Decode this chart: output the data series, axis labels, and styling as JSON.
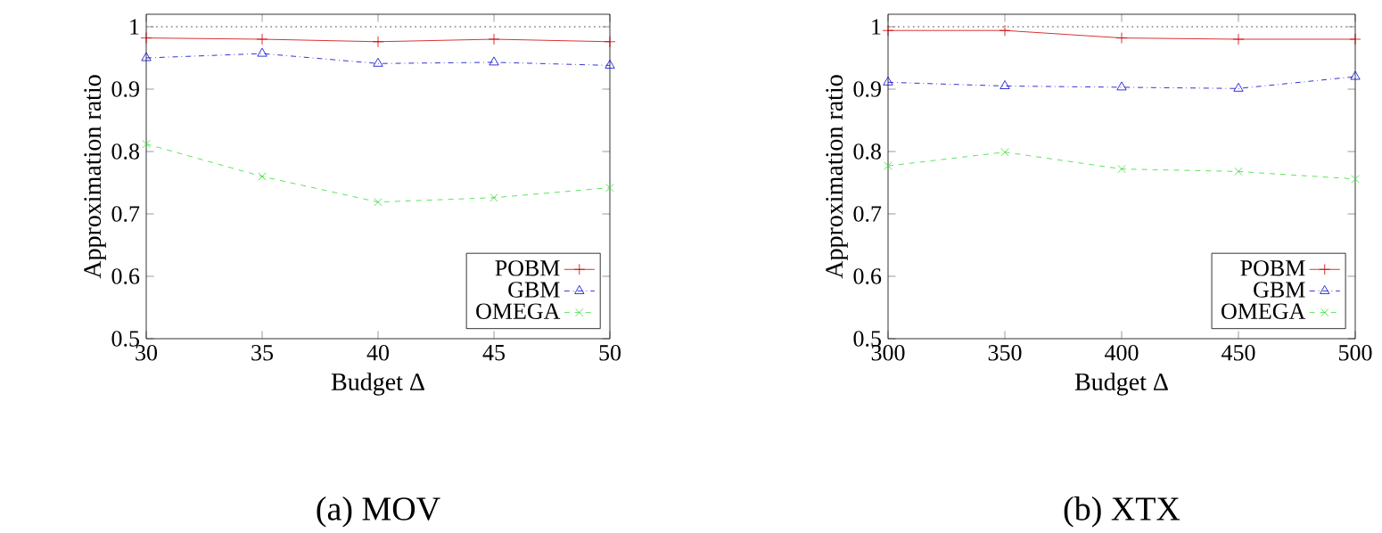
{
  "chart_data": [
    {
      "type": "line",
      "title": "(a) MOV",
      "xlabel": "Budget Δ",
      "ylabel": "Approximation ratio",
      "x": [
        30,
        35,
        40,
        45,
        50
      ],
      "xlim": [
        30,
        50
      ],
      "xticks": [
        30,
        35,
        40,
        45,
        50
      ],
      "ylim": [
        0.5,
        1.02
      ],
      "yticks": [
        0.5,
        0.6,
        0.7,
        0.8,
        0.9,
        1
      ],
      "legend": "bottom right",
      "ref_lines": [
        {
          "axis": "y",
          "value": 1,
          "color": "#808080",
          "line_style": "dotted"
        }
      ],
      "series": [
        {
          "name": "POBM",
          "color": "#cc0000",
          "marker": "plus",
          "line_style": "solid",
          "values": [
            0.982,
            0.98,
            0.976,
            0.98,
            0.976
          ]
        },
        {
          "name": "GBM",
          "color": "#0000cc",
          "marker": "triangle",
          "line_style": "dashdot",
          "values": [
            0.95,
            0.957,
            0.941,
            0.943,
            0.938
          ]
        },
        {
          "name": "OMEGA",
          "color": "#33dd33",
          "marker": "cross",
          "line_style": "dashed",
          "values": [
            0.812,
            0.76,
            0.719,
            0.726,
            0.742
          ]
        }
      ]
    },
    {
      "type": "line",
      "title": "(b) XTX",
      "xlabel": "Budget Δ",
      "ylabel": "Approximation ratio",
      "x": [
        300,
        350,
        400,
        450,
        500
      ],
      "xlim": [
        300,
        500
      ],
      "xticks": [
        300,
        350,
        400,
        450,
        500
      ],
      "ylim": [
        0.5,
        1.02
      ],
      "yticks": [
        0.5,
        0.6,
        0.7,
        0.8,
        0.9,
        1
      ],
      "legend": "bottom right",
      "ref_lines": [
        {
          "axis": "y",
          "value": 1,
          "color": "#808080",
          "line_style": "dotted"
        }
      ],
      "series": [
        {
          "name": "POBM",
          "color": "#cc0000",
          "marker": "plus",
          "line_style": "solid",
          "values": [
            0.994,
            0.994,
            0.982,
            0.98,
            0.98
          ]
        },
        {
          "name": "GBM",
          "color": "#0000cc",
          "marker": "triangle",
          "line_style": "dashdot",
          "values": [
            0.911,
            0.905,
            0.903,
            0.901,
            0.92
          ]
        },
        {
          "name": "OMEGA",
          "color": "#33dd33",
          "marker": "cross",
          "line_style": "dashed",
          "values": [
            0.777,
            0.799,
            0.772,
            0.768,
            0.756
          ]
        }
      ]
    }
  ]
}
